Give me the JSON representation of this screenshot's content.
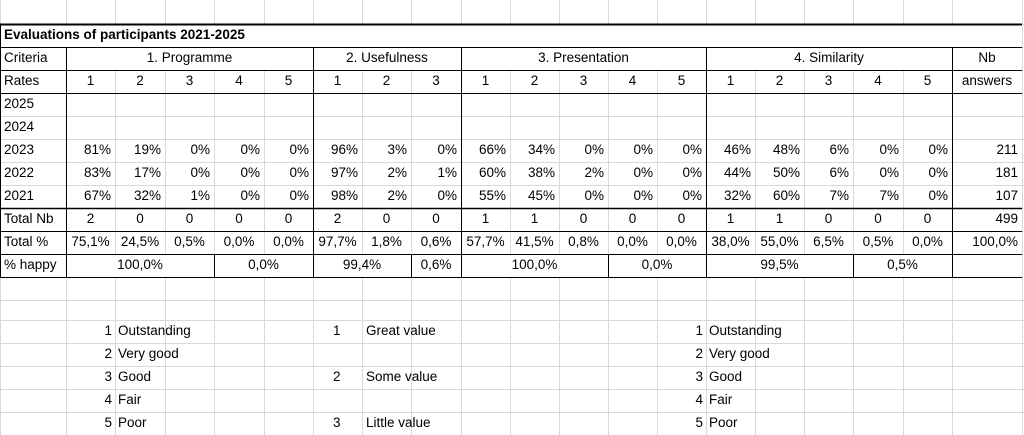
{
  "title": "Evaluations of participants 2021-2025",
  "criteria_label": "Criteria",
  "groups": [
    {
      "name": "1. Programme",
      "rates": [
        "1",
        "2",
        "3",
        "4",
        "5"
      ]
    },
    {
      "name": "2. Usefulness",
      "rates": [
        "1",
        "2",
        "3"
      ]
    },
    {
      "name": "3. Presentation",
      "rates": [
        "1",
        "2",
        "3",
        "4",
        "5"
      ]
    },
    {
      "name": "4. Similarity",
      "rates": [
        "1",
        "2",
        "3",
        "4",
        "5"
      ]
    }
  ],
  "nb_header": [
    "Nb",
    "answers"
  ],
  "rates_label": "Rates",
  "years": [
    {
      "label": "2025"
    },
    {
      "label": "2024"
    },
    {
      "label": "2023",
      "cells": [
        "81%",
        "19%",
        "0%",
        "0%",
        "0%",
        "96%",
        "3%",
        "0%",
        "66%",
        "34%",
        "0%",
        "0%",
        "0%",
        "46%",
        "48%",
        "6%",
        "0%",
        "0%"
      ],
      "nb": "211"
    },
    {
      "label": "2022",
      "cells": [
        "83%",
        "17%",
        "0%",
        "0%",
        "0%",
        "97%",
        "2%",
        "1%",
        "60%",
        "38%",
        "2%",
        "0%",
        "0%",
        "44%",
        "50%",
        "6%",
        "0%",
        "0%"
      ],
      "nb": "181"
    },
    {
      "label": "2021",
      "cells": [
        "67%",
        "32%",
        "1%",
        "0%",
        "0%",
        "98%",
        "2%",
        "0%",
        "55%",
        "45%",
        "0%",
        "0%",
        "0%",
        "32%",
        "60%",
        "7%",
        "7%",
        "0%"
      ],
      "nb": "107"
    }
  ],
  "total_nb": {
    "label": "Total Nb",
    "cells": [
      "2",
      "0",
      "0",
      "0",
      "0",
      "2",
      "0",
      "0",
      "1",
      "1",
      "0",
      "0",
      "0",
      "1",
      "1",
      "0",
      "0",
      "0"
    ],
    "nb": "499"
  },
  "total_pct": {
    "label": "Total %",
    "cells": [
      "75,1%",
      "24,5%",
      "0,5%",
      "0,0%",
      "0,0%",
      "97,7%",
      "1,8%",
      "0,6%",
      "57,7%",
      "41,5%",
      "0,8%",
      "0,0%",
      "0,0%",
      "38,0%",
      "55,0%",
      "6,5%",
      "0,5%",
      "0,0%"
    ],
    "nb": "100,0%"
  },
  "happy": {
    "label": "% happy",
    "cells": [
      "100,0%",
      "0,0%",
      "99,4%",
      "0,6%",
      "100,0%",
      "0,0%",
      "99,5%",
      "0,5%"
    ]
  },
  "legend_left": [
    {
      "num": "1",
      "text": "Outstanding"
    },
    {
      "num": "2",
      "text": "Very good"
    },
    {
      "num": "3",
      "text": "Good"
    },
    {
      "num": "4",
      "text": "Fair"
    },
    {
      "num": "5",
      "text": "Poor"
    }
  ],
  "legend_middle": [
    {
      "num": "1",
      "text": "Great value"
    },
    {
      "num": "2",
      "text": "Some value"
    },
    {
      "num": "3",
      "text": "Little value"
    }
  ],
  "legend_right": [
    {
      "num": "1",
      "text": "Outstanding"
    },
    {
      "num": "2",
      "text": "Very good"
    },
    {
      "num": "3",
      "text": "Good"
    },
    {
      "num": "4",
      "text": "Fair"
    },
    {
      "num": "5",
      "text": "Poor"
    }
  ]
}
